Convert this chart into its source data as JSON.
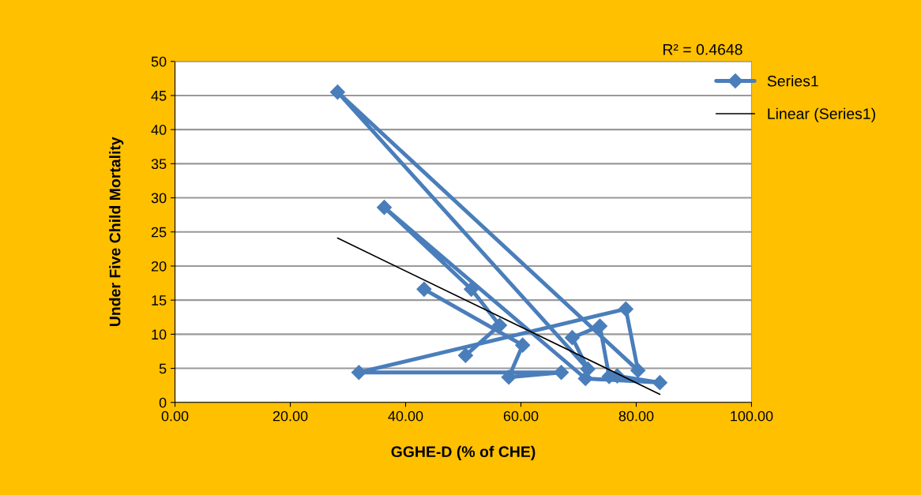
{
  "chart_data": {
    "type": "line",
    "xlabel": "GGHE-D (% of CHE)",
    "ylabel": "Under Five Child Mortality",
    "annotations": [
      "R² = 0.4648"
    ],
    "series": [
      {
        "name": "Series1",
        "color": "#4a7ebb",
        "marker": "diamond",
        "x": [
          43.2,
          60.3,
          57.9,
          67.0,
          31.9,
          78.2,
          80.3,
          28.2,
          71.6,
          68.9,
          73.7,
          75.3,
          76.7,
          84.1,
          71.2,
          36.3,
          51.4,
          56.3,
          50.4
        ],
        "values": [
          16.6,
          8.4,
          3.7,
          4.4,
          4.4,
          13.7,
          4.7,
          45.5,
          4.9,
          9.5,
          11.2,
          3.8,
          3.9,
          2.9,
          3.5,
          28.6,
          16.6,
          11.3,
          6.9
        ]
      },
      {
        "name": "Linear (Series1)",
        "type": "line",
        "color": "#000000",
        "marker": "none",
        "x": [
          28.2,
          84.1
        ],
        "values": [
          24.1,
          1.2
        ]
      }
    ],
    "xlim": [
      0,
      100
    ],
    "xticks": [
      {
        "value": 0,
        "label": "0.00"
      },
      {
        "value": 20,
        "label": "20.00"
      },
      {
        "value": 40,
        "label": "40.00"
      },
      {
        "value": 60,
        "label": "60.00"
      },
      {
        "value": 80,
        "label": "80.00"
      },
      {
        "value": 100,
        "label": "100.00"
      }
    ],
    "ylim": [
      0,
      50
    ],
    "yticks": [
      0,
      5,
      10,
      15,
      20,
      25,
      30,
      35,
      40,
      45,
      50
    ],
    "grid": "y",
    "legend": "top right"
  }
}
